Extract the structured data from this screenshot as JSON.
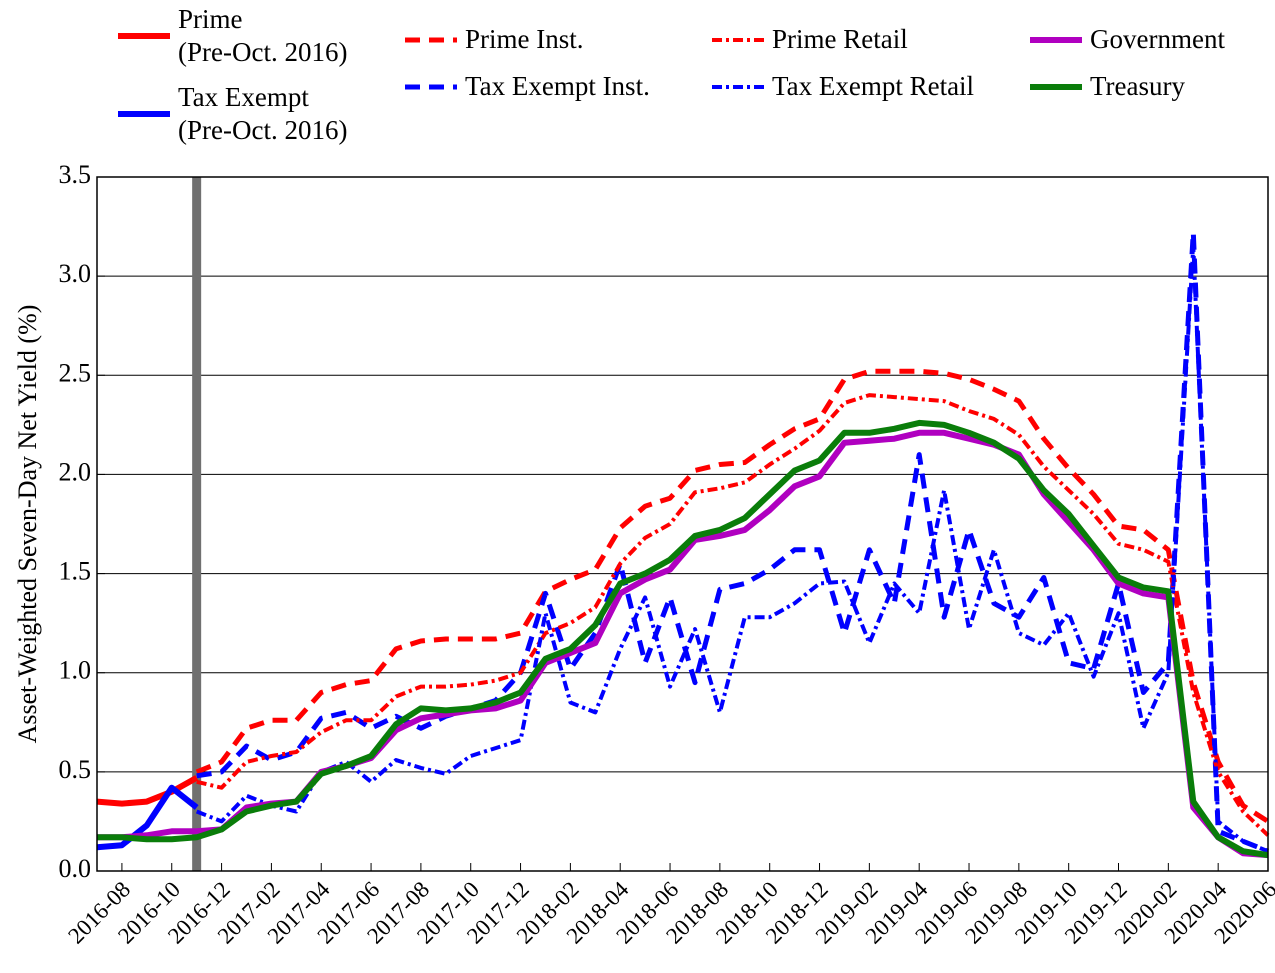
{
  "chart_data": {
    "type": "line",
    "y_label": "Asset-Weighted Seven-Day Net Yield (%)",
    "categories": [
      null,
      "2016-08",
      null,
      "2016-10",
      null,
      "2016-12",
      null,
      "2017-02",
      null,
      "2017-04",
      null,
      "2017-06",
      null,
      "2017-08",
      null,
      "2017-10",
      null,
      "2017-12",
      null,
      "2018-02",
      null,
      "2018-04",
      null,
      "2018-06",
      null,
      "2018-08",
      null,
      "2018-10",
      null,
      "2018-12",
      null,
      "2019-02",
      null,
      "2019-04",
      null,
      "2019-06",
      null,
      "2019-08",
      null,
      "2019-10",
      null,
      "2019-12",
      null,
      "2020-02",
      null,
      "2020-04",
      null,
      "2020-06"
    ],
    "ylim": [
      0,
      3.5
    ],
    "yticks": [
      {
        "value": 0,
        "label": "0.0"
      },
      {
        "value": 0.5,
        "label": "0.5"
      },
      {
        "value": 1,
        "label": "1.0"
      },
      {
        "value": 1.5,
        "label": "1.5"
      },
      {
        "value": 2,
        "label": "2.0"
      },
      {
        "value": 2.5,
        "label": "2.5"
      },
      {
        "value": 3,
        "label": "3.0"
      },
      {
        "value": 3.5,
        "label": "3.5"
      }
    ],
    "grid": true,
    "series": [
      {
        "name": "Prime\n(Pre-Oct. 2016)",
        "color": "#ff0000",
        "style": "solid",
        "values": [
          0.35,
          0.34,
          0.35,
          0.4,
          0.47,
          null,
          null,
          null,
          null,
          null,
          null,
          null,
          null,
          null,
          null,
          null,
          null,
          null,
          null,
          null,
          null,
          null,
          null,
          null,
          null,
          null,
          null,
          null,
          null,
          null,
          null,
          null,
          null,
          null,
          null,
          null,
          null,
          null,
          null,
          null,
          null,
          null,
          null,
          null,
          null,
          null,
          null,
          null
        ]
      },
      {
        "name": "Tax Exempt\n(Pre-Oct. 2016)",
        "color": "#0000ff",
        "style": "solid",
        "values": [
          0.12,
          0.13,
          0.23,
          0.42,
          0.32,
          null,
          null,
          null,
          null,
          null,
          null,
          null,
          null,
          null,
          null,
          null,
          null,
          null,
          null,
          null,
          null,
          null,
          null,
          null,
          null,
          null,
          null,
          null,
          null,
          null,
          null,
          null,
          null,
          null,
          null,
          null,
          null,
          null,
          null,
          null,
          null,
          null,
          null,
          null,
          null,
          null,
          null,
          null
        ]
      },
      {
        "name": "Prime Inst.",
        "color": "#ff0000",
        "style": "dashed",
        "values": [
          null,
          null,
          null,
          null,
          0.5,
          0.55,
          0.72,
          0.76,
          0.76,
          0.9,
          0.94,
          0.96,
          1.12,
          1.16,
          1.17,
          1.17,
          1.17,
          1.2,
          1.41,
          1.47,
          1.52,
          1.73,
          1.84,
          1.88,
          2.02,
          2.05,
          2.06,
          2.15,
          2.23,
          2.28,
          2.48,
          2.52,
          2.52,
          2.52,
          2.51,
          2.48,
          2.43,
          2.37,
          2.18,
          2.03,
          1.9,
          1.74,
          1.72,
          1.62,
          0.95,
          0.55,
          0.33,
          0.25
        ]
      },
      {
        "name": "Tax Exempt Inst.",
        "color": "#0000ff",
        "style": "dashed",
        "values": [
          null,
          null,
          null,
          null,
          0.48,
          0.5,
          0.63,
          0.56,
          0.6,
          0.77,
          0.8,
          0.72,
          0.78,
          0.72,
          0.78,
          0.82,
          0.86,
          1.0,
          1.4,
          1.02,
          1.2,
          1.55,
          1.05,
          1.38,
          0.95,
          1.42,
          1.45,
          1.52,
          1.62,
          1.62,
          1.2,
          1.62,
          1.35,
          2.1,
          1.28,
          1.72,
          1.35,
          1.28,
          1.48,
          1.05,
          1.02,
          1.45,
          0.9,
          1.05,
          3.22,
          0.2,
          0.15,
          0.1
        ]
      },
      {
        "name": "Prime Retail",
        "color": "#ff0000",
        "style": "dashdot",
        "values": [
          null,
          null,
          null,
          null,
          0.45,
          0.42,
          0.55,
          0.58,
          0.6,
          0.7,
          0.76,
          0.76,
          0.88,
          0.93,
          0.93,
          0.94,
          0.96,
          1.0,
          1.2,
          1.25,
          1.33,
          1.55,
          1.68,
          1.75,
          1.91,
          1.93,
          1.96,
          2.05,
          2.13,
          2.22,
          2.36,
          2.4,
          2.39,
          2.38,
          2.37,
          2.32,
          2.28,
          2.2,
          2.04,
          1.92,
          1.8,
          1.65,
          1.62,
          1.56,
          0.9,
          0.5,
          0.3,
          0.18
        ]
      },
      {
        "name": "Tax Exempt Retail",
        "color": "#0000ff",
        "style": "dashdot",
        "values": [
          null,
          null,
          null,
          null,
          0.3,
          0.25,
          0.38,
          0.33,
          0.3,
          0.5,
          0.55,
          0.45,
          0.56,
          0.52,
          0.49,
          0.58,
          0.62,
          0.66,
          1.3,
          0.85,
          0.8,
          1.12,
          1.38,
          0.93,
          1.22,
          0.8,
          1.28,
          1.28,
          1.35,
          1.45,
          1.46,
          1.15,
          1.45,
          1.3,
          1.92,
          1.22,
          1.62,
          1.2,
          1.14,
          1.3,
          0.98,
          1.3,
          0.72,
          1.0,
          3.15,
          0.25,
          0.15,
          0.1
        ]
      },
      {
        "name": "Government",
        "color": "#b000c0",
        "style": "solid",
        "values": [
          0.17,
          0.17,
          0.18,
          0.2,
          0.2,
          0.21,
          0.32,
          0.34,
          0.35,
          0.5,
          0.53,
          0.57,
          0.71,
          0.77,
          0.79,
          0.81,
          0.82,
          0.86,
          1.05,
          1.1,
          1.15,
          1.4,
          1.47,
          1.52,
          1.67,
          1.69,
          1.72,
          1.82,
          1.94,
          1.99,
          2.16,
          2.17,
          2.18,
          2.21,
          2.21,
          2.18,
          2.15,
          2.1,
          1.9,
          1.76,
          1.62,
          1.45,
          1.4,
          1.38,
          0.32,
          0.17,
          0.09,
          0.08
        ]
      },
      {
        "name": "Treasury",
        "color": "#0a7d0a",
        "style": "solid",
        "values": [
          0.17,
          0.17,
          0.16,
          0.16,
          0.17,
          0.21,
          0.3,
          0.33,
          0.35,
          0.49,
          0.53,
          0.58,
          0.74,
          0.82,
          0.81,
          0.82,
          0.85,
          0.9,
          1.07,
          1.12,
          1.24,
          1.45,
          1.5,
          1.57,
          1.69,
          1.72,
          1.78,
          1.9,
          2.02,
          2.07,
          2.21,
          2.21,
          2.23,
          2.26,
          2.25,
          2.21,
          2.16,
          2.08,
          1.92,
          1.8,
          1.64,
          1.48,
          1.43,
          1.41,
          0.35,
          0.17,
          0.1,
          0.08
        ]
      }
    ]
  }
}
